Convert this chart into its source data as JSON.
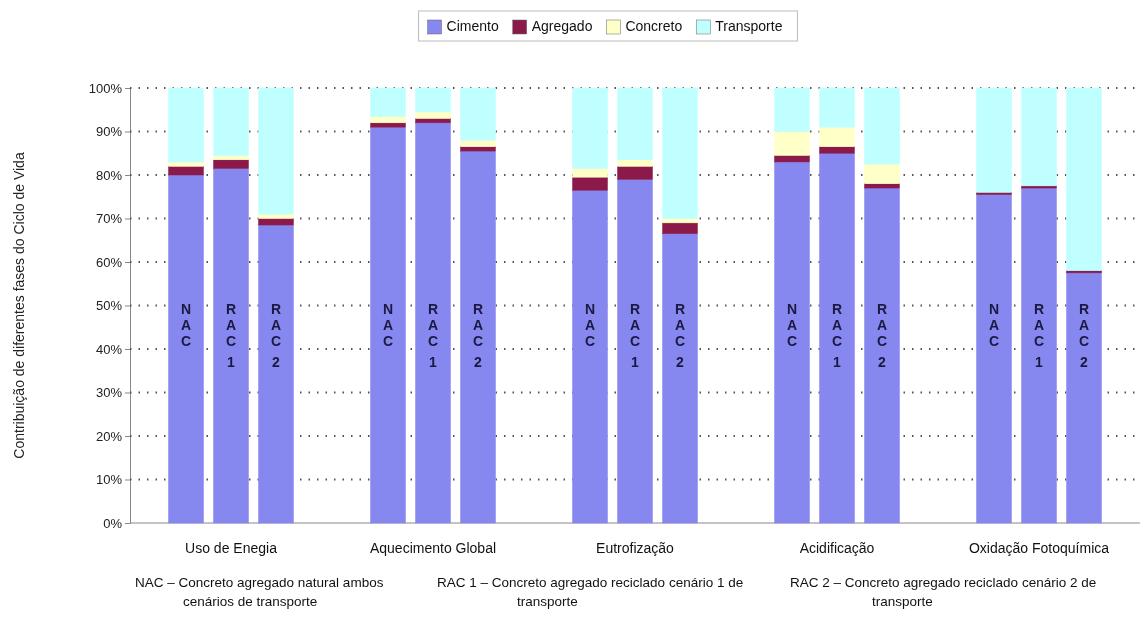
{
  "chart_data": {
    "type": "bar",
    "stacked": true,
    "ylabel": "Contribuição de diferentes fases do Ciclo de Vida",
    "categories": [
      "NAC",
      "RAC 1",
      "RAC 2",
      "NAC",
      "RAC 1",
      "RAC 2",
      "NAC",
      "RAC 1",
      "RAC 2",
      "NAC",
      "RAC 1",
      "RAC 2",
      "NAC",
      "RAC 1",
      "RAC 2"
    ],
    "series": [
      {
        "name": "Cimento",
        "color": "#8787f0",
        "values": [
          80,
          81.5,
          68.5,
          91,
          92,
          85.5,
          76.5,
          79,
          66.5,
          83,
          85,
          77,
          75.5,
          77,
          57.5
        ]
      },
      {
        "name": "Agregado",
        "color": "#8b1a4a",
        "values": [
          2,
          2,
          1.5,
          1,
          1,
          1,
          3,
          3,
          2.5,
          1.5,
          1.5,
          1,
          0.5,
          0.5,
          0.5
        ]
      },
      {
        "name": "Concreto",
        "color": "#ffffc8",
        "values": [
          1,
          1,
          1,
          1.5,
          1.5,
          1.5,
          2,
          1.5,
          1,
          5.5,
          4.5,
          4.5,
          0,
          0,
          0
        ]
      },
      {
        "name": "Transporte",
        "color": "#c0ffff",
        "values": [
          17,
          15.5,
          29,
          6.5,
          5.5,
          12,
          18.5,
          16.5,
          30,
          10,
          9,
          17.5,
          24,
          22.5,
          42
        ]
      }
    ],
    "ylim": [
      0,
      100
    ],
    "yticks": [
      {
        "value": 0,
        "label": "0%"
      },
      {
        "value": 10,
        "label": "10%"
      },
      {
        "value": 20,
        "label": "20%"
      },
      {
        "value": 30,
        "label": "30%"
      },
      {
        "value": 40,
        "label": "40%"
      },
      {
        "value": 50,
        "label": "50%"
      },
      {
        "value": 60,
        "label": "60%"
      },
      {
        "value": 70,
        "label": "70%"
      },
      {
        "value": 80,
        "label": "80%"
      },
      {
        "value": 90,
        "label": "90%"
      },
      {
        "value": 100,
        "label": "100%"
      }
    ],
    "grid": "y",
    "legend": "top",
    "annotations": [
      "Uso de Enegia",
      "Aquecimento Global",
      "Eutrofização",
      "Acidificação",
      "Oxidação Fotoquímica",
      "NAC – Concreto agregado natural ambos cenários de transporte",
      "RAC 1 – Concreto agregado reciclado cenário 1 de transporte",
      "RAC 2 – Concreto agregado reciclado cenário 2 de transporte"
    ]
  }
}
